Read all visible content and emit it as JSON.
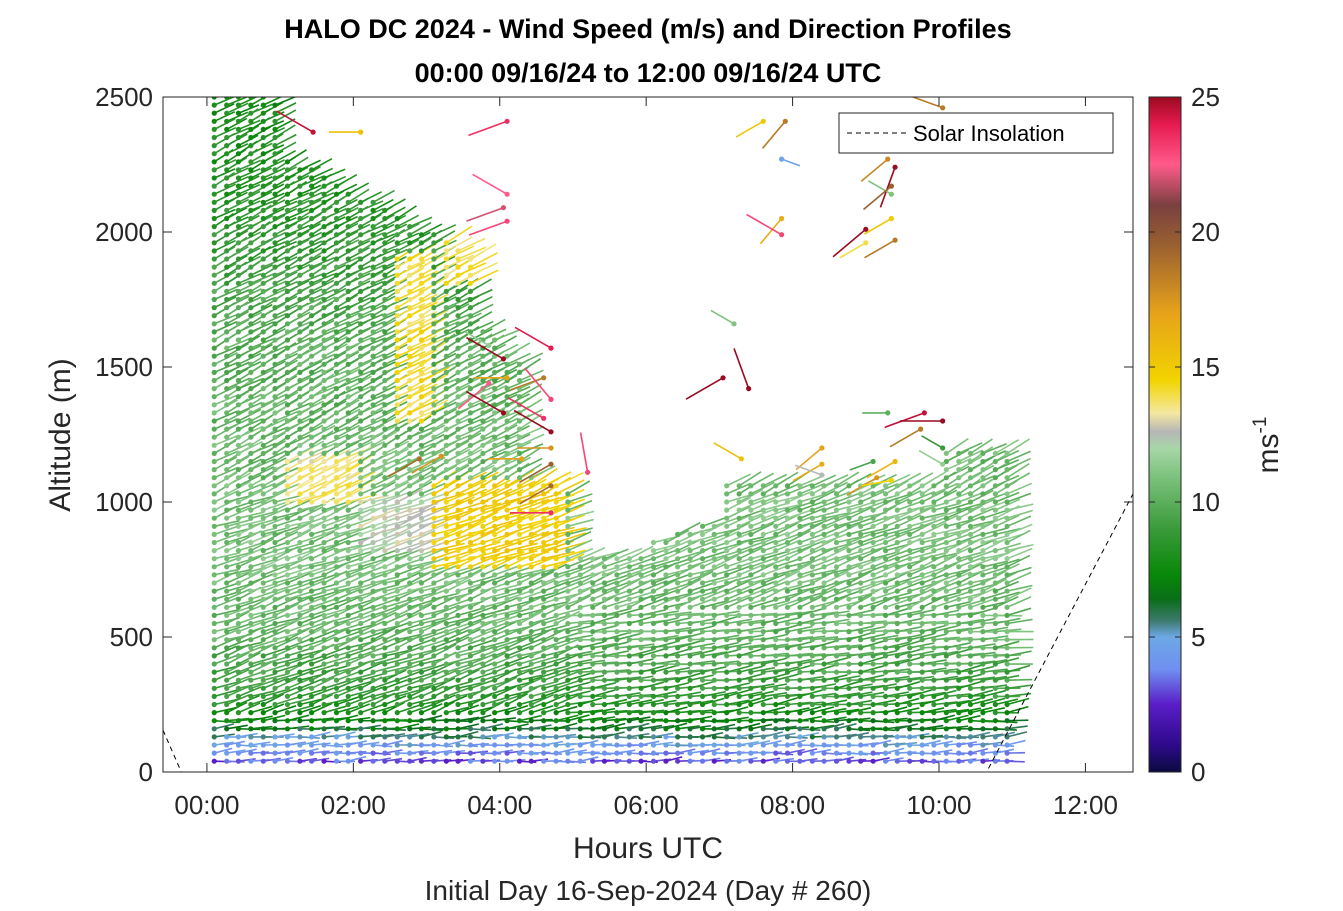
{
  "chart_data": {
    "type": "scatter",
    "subtype": "wind-barb-profile",
    "title": "HALO DC 2024 - Wind Speed (m/s) and Direction Profiles",
    "subtitle": "00:00 09/16/24 to 12:00 09/16/24  UTC",
    "xlabel": "Hours UTC",
    "ylabel": "Altitude (m)",
    "footer": "Initial Day 16-Sep-2024 (Day # 260)",
    "xlim_hours": [
      -0.6,
      12.65
    ],
    "ylim": [
      0,
      2500
    ],
    "x_ticks": [
      {
        "h": 0,
        "label": "00:00"
      },
      {
        "h": 2,
        "label": "02:00"
      },
      {
        "h": 4,
        "label": "04:00"
      },
      {
        "h": 6,
        "label": "06:00"
      },
      {
        "h": 8,
        "label": "08:00"
      },
      {
        "h": 10,
        "label": "10:00"
      },
      {
        "h": 12,
        "label": "12:00"
      }
    ],
    "y_ticks": [
      0,
      500,
      1000,
      1500,
      2000,
      2500
    ],
    "legend": {
      "entries": [
        "Solar Insolation"
      ],
      "placement": "top-right"
    },
    "colorbar": {
      "label": "ms",
      "label_exponent": "-1",
      "range": [
        0,
        25
      ],
      "ticks": [
        0,
        5,
        10,
        15,
        20,
        25
      ],
      "stops": [
        [
          0,
          "#0a0a40"
        ],
        [
          1,
          "#2e0a8a"
        ],
        [
          2.5,
          "#5a1dc8"
        ],
        [
          3.8,
          "#6f8ff0"
        ],
        [
          5,
          "#6ea8e6"
        ],
        [
          5.6,
          "#3d7a6e"
        ],
        [
          6.4,
          "#0a6e18"
        ],
        [
          7.3,
          "#088808"
        ],
        [
          9,
          "#3a9a3a"
        ],
        [
          11,
          "#7fc37f"
        ],
        [
          12,
          "#a8d6a8"
        ],
        [
          12.6,
          "#b6b6b6"
        ],
        [
          13.3,
          "#f4e8a0"
        ],
        [
          14.5,
          "#f2d400"
        ],
        [
          17,
          "#e6a21a"
        ],
        [
          19.5,
          "#9a6030"
        ],
        [
          21,
          "#7a4040"
        ],
        [
          22.5,
          "#ff5a8a"
        ],
        [
          24,
          "#e61a50"
        ],
        [
          25,
          "#9a0a20"
        ]
      ]
    },
    "series": [
      {
        "name": "Solar Insolation",
        "x": [
          -0.6,
          -0.35,
          10.65,
          12.65
        ],
        "y": [
          155,
          0,
          0,
          1030
        ]
      }
    ],
    "wind_profiles": {
      "times_h": [
        0.1,
        0.27,
        0.43,
        0.6,
        0.77,
        0.93,
        1.1,
        1.27,
        1.43,
        1.6,
        1.77,
        1.93,
        2.1,
        2.27,
        2.43,
        2.6,
        2.77,
        2.93,
        3.1,
        3.27,
        3.43,
        3.6,
        3.77,
        3.93,
        4.1,
        4.27,
        4.43,
        4.6,
        4.77,
        4.93,
        5.1,
        5.27,
        5.43,
        5.6,
        5.77,
        5.93,
        6.1,
        6.27,
        6.43,
        6.6,
        6.77,
        6.93,
        7.1,
        7.27,
        7.43,
        7.6,
        7.77,
        7.93,
        8.1,
        8.27,
        8.43,
        8.6,
        8.77,
        8.93,
        9.1,
        9.27,
        9.43,
        9.6,
        9.77,
        9.93,
        10.1,
        10.27,
        10.43,
        10.6,
        10.77,
        10.93
      ],
      "top_altitude_m": [
        2500,
        2500,
        2500,
        2500,
        2500,
        2480,
        2280,
        2250,
        2230,
        2200,
        2180,
        2160,
        2130,
        2110,
        2080,
        2050,
        2030,
        2010,
        1990,
        1960,
        1940,
        1920,
        1640,
        1600,
        1560,
        1520,
        1100,
        1080,
        1060,
        1040,
        810,
        810,
        810,
        810,
        810,
        810,
        860,
        870,
        880,
        890,
        910,
        920,
        1060,
        1060,
        1060,
        1060,
        1060,
        1060,
        1060,
        1060,
        1060,
        1060,
        1060,
        1060,
        1060,
        1060,
        1060,
        1060,
        1060,
        1060,
        1200,
        1200,
        1200,
        1200,
        1200,
        1200
      ],
      "bottom_altitude_m": 40,
      "level_spacing_m": 30,
      "speed_scale_ms": [
        {
          "z": 40,
          "s": 3.2
        },
        {
          "z": 100,
          "s": 4.5
        },
        {
          "z": 160,
          "s": 6.4
        },
        {
          "z": 260,
          "s": 8.6
        },
        {
          "z": 500,
          "s": 10.2
        },
        {
          "z": 800,
          "s": 10.8
        },
        {
          "z": 1100,
          "s": 10.6
        },
        {
          "z": 1600,
          "s": 9.9
        },
        {
          "z": 2000,
          "s": 8.6
        },
        {
          "z": 2500,
          "s": 7.6
        }
      ],
      "jet_regions": [
        {
          "t": [
            1.0,
            2.0
          ],
          "z": [
            980,
            1160
          ],
          "s": 13.6
        },
        {
          "t": [
            2.5,
            3.0
          ],
          "z": [
            1300,
            1920
          ],
          "s": 14.2
        },
        {
          "t": [
            3.0,
            4.9
          ],
          "z": [
            740,
            1080
          ],
          "s": 14.8
        },
        {
          "t": [
            2.0,
            3.0
          ],
          "z": [
            800,
            1000
          ],
          "s": 12.5
        },
        {
          "t": [
            3.2,
            3.6
          ],
          "z": [
            1800,
            1960
          ],
          "s": 14.0
        }
      ]
    },
    "scattered_barbs": [
      {
        "t": 1.45,
        "z": 2370,
        "s": 24.5,
        "dir": 300
      },
      {
        "t": 2.1,
        "z": 2370,
        "s": 15.5,
        "dir": 270
      },
      {
        "t": 4.1,
        "z": 2410,
        "s": 23.5,
        "dir": 250
      },
      {
        "t": 7.6,
        "z": 2410,
        "s": 15.2,
        "dir": 240
      },
      {
        "t": 7.9,
        "z": 2410,
        "s": 18.5,
        "dir": 220
      },
      {
        "t": 7.85,
        "z": 2270,
        "s": 4.8,
        "dir": 110
      },
      {
        "t": 9.3,
        "z": 2270,
        "s": 18.0,
        "dir": 230
      },
      {
        "t": 9.4,
        "z": 2240,
        "s": 25.0,
        "dir": 200
      },
      {
        "t": 4.1,
        "z": 2140,
        "s": 22.5,
        "dir": 300
      },
      {
        "t": 4.05,
        "z": 2090,
        "s": 22.0,
        "dir": 250
      },
      {
        "t": 4.1,
        "z": 2040,
        "s": 23.0,
        "dir": 250
      },
      {
        "t": 7.85,
        "z": 2050,
        "s": 16.5,
        "dir": 220
      },
      {
        "t": 7.85,
        "z": 1990,
        "s": 23.0,
        "dir": 300
      },
      {
        "t": 9.0,
        "z": 2010,
        "s": 25.0,
        "dir": 230
      },
      {
        "t": 9.35,
        "z": 2050,
        "s": 15.0,
        "dir": 240
      },
      {
        "t": 9.4,
        "z": 1970,
        "s": 18.5,
        "dir": 240
      },
      {
        "t": 9.0,
        "z": 1960,
        "s": 14.0,
        "dir": 240
      },
      {
        "t": 9.35,
        "z": 2140,
        "s": 11.0,
        "dir": 300
      },
      {
        "t": 9.35,
        "z": 2170,
        "s": 19.5,
        "dir": 230
      },
      {
        "t": 7.2,
        "z": 1660,
        "s": 11.0,
        "dir": 300
      },
      {
        "t": 3.85,
        "z": 1580,
        "s": 11.5,
        "dir": 300
      },
      {
        "t": 4.05,
        "z": 1530,
        "s": 25.0,
        "dir": 300
      },
      {
        "t": 4.1,
        "z": 1460,
        "s": 17.0,
        "dir": 270
      },
      {
        "t": 4.6,
        "z": 1460,
        "s": 18.5,
        "dir": 250
      },
      {
        "t": 4.7,
        "z": 1570,
        "s": 24.0,
        "dir": 300
      },
      {
        "t": 3.85,
        "z": 1440,
        "s": 22.5,
        "dir": 230
      },
      {
        "t": 4.7,
        "z": 1380,
        "s": 23.0,
        "dir": 320
      },
      {
        "t": 4.05,
        "z": 1330,
        "s": 25.0,
        "dir": 300
      },
      {
        "t": 4.6,
        "z": 1310,
        "s": 23.5,
        "dir": 300
      },
      {
        "t": 4.7,
        "z": 1260,
        "s": 25.0,
        "dir": 300
      },
      {
        "t": 4.7,
        "z": 1200,
        "s": 17.5,
        "dir": 270
      },
      {
        "t": 4.3,
        "z": 1160,
        "s": 17.0,
        "dir": 270
      },
      {
        "t": 7.05,
        "z": 1460,
        "s": 25.0,
        "dir": 240
      },
      {
        "t": 7.4,
        "z": 1420,
        "s": 25.0,
        "dir": 340
      },
      {
        "t": 9.3,
        "z": 1330,
        "s": 10.0,
        "dir": 270
      },
      {
        "t": 9.8,
        "z": 1330,
        "s": 24.5,
        "dir": 250
      },
      {
        "t": 9.75,
        "z": 1270,
        "s": 18.5,
        "dir": 240
      },
      {
        "t": 10.05,
        "z": 1300,
        "s": 25.0,
        "dir": 270
      },
      {
        "t": 7.3,
        "z": 1160,
        "s": 15.5,
        "dir": 300
      },
      {
        "t": 8.4,
        "z": 1200,
        "s": 17.0,
        "dir": 230
      },
      {
        "t": 8.4,
        "z": 1140,
        "s": 16.5,
        "dir": 240
      },
      {
        "t": 8.4,
        "z": 1100,
        "s": 12.5,
        "dir": 290
      },
      {
        "t": 9.1,
        "z": 1150,
        "s": 9.5,
        "dir": 250
      },
      {
        "t": 9.4,
        "z": 1150,
        "s": 16.0,
        "dir": 240
      },
      {
        "t": 9.15,
        "z": 1090,
        "s": 17.5,
        "dir": 240
      },
      {
        "t": 9.35,
        "z": 1080,
        "s": 14.5,
        "dir": 260
      },
      {
        "t": 10.05,
        "z": 1200,
        "s": 9.0,
        "dir": 300
      },
      {
        "t": 10.05,
        "z": 1140,
        "s": 11.5,
        "dir": 300
      },
      {
        "t": 4.7,
        "z": 1140,
        "s": 19.5,
        "dir": 240
      },
      {
        "t": 4.7,
        "z": 1060,
        "s": 19.0,
        "dir": 240
      },
      {
        "t": 4.7,
        "z": 960,
        "s": 23.5,
        "dir": 270
      },
      {
        "t": 5.2,
        "z": 1110,
        "s": 23.0,
        "dir": 350
      },
      {
        "t": 2.9,
        "z": 1160,
        "s": 19.0,
        "dir": 240
      },
      {
        "t": 3.2,
        "z": 1170,
        "s": 17.5,
        "dir": 240
      },
      {
        "t": 10.05,
        "z": 2460,
        "s": 18.5,
        "dir": 290
      }
    ]
  }
}
